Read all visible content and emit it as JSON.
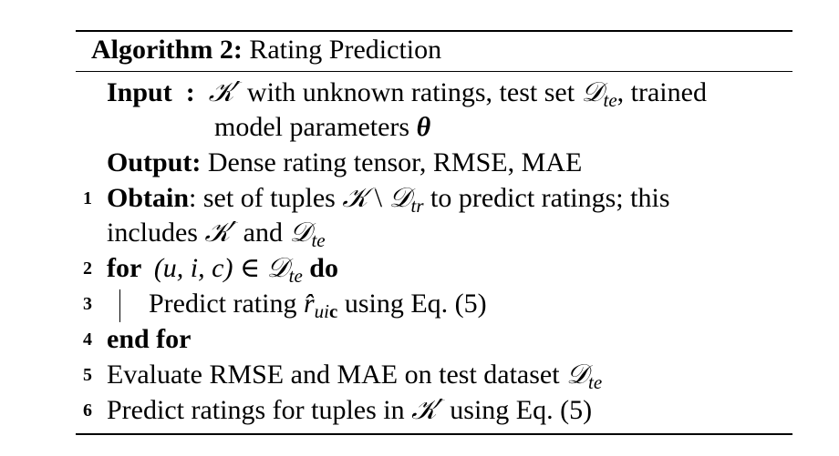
{
  "algorithm": {
    "label": "Algorithm 2:",
    "title": "Rating Prediction",
    "input_label": "Input",
    "input_sep": ":",
    "input_line1_text": "with unknown ratings, test set",
    "input_line1_trained": ", trained",
    "input_line2": "model parameters",
    "output_label": "Output:",
    "output_text": "Dense rating tensor, RMSE, MAE",
    "steps": [
      {
        "num": "1",
        "keyword": "Obtain",
        "text_a": ": set of tuples",
        "text_b": "to predict ratings; this",
        "cont_a": "includes",
        "cont_b": "and"
      },
      {
        "num": "2",
        "keyword_for": "for",
        "text": "(u, i, c) ∈",
        "keyword_do": "do"
      },
      {
        "num": "3",
        "text_a": "Predict rating",
        "text_b": "using Eq. (5)"
      },
      {
        "num": "4",
        "keyword": "end for"
      },
      {
        "num": "5",
        "text": "Evaluate RMSE and MAE on test dataset"
      },
      {
        "num": "6",
        "text_a": "Predict ratings for tuples in",
        "text_b": "using Eq. (5)"
      }
    ],
    "symbols": {
      "K_prime": "𝒦′",
      "K": "𝒦",
      "D": "𝒟",
      "sub_te": "te",
      "sub_tr": "tr",
      "setminus": "\\",
      "theta": "θ",
      "r_hat": "r̂",
      "sub_ui": "ui",
      "sub_c": "c"
    }
  }
}
